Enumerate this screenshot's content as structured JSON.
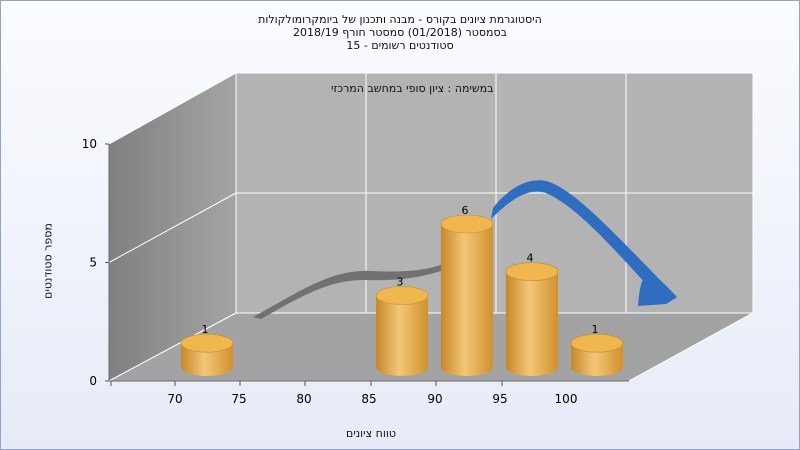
{
  "chart_data": {
    "type": "bar",
    "title_lines": [
      "היסטוגרמת ציונים בקורס - מבנה ותכנון של ביומקרומולקולות",
      "בסמסטר  (01/2018)  סמסטר חורף 2018/19",
      "סטודנטים רשומים - 15"
    ],
    "subtitle": "במשימה : ציון סופי במחשב המרכזי",
    "xlabel": "טווח ציונים",
    "ylabel": "מספר סטודנטים",
    "x_ticks": [
      "70",
      "75",
      "80",
      "85",
      "90",
      "95",
      "100"
    ],
    "y_ticks": [
      "0",
      "5",
      "10"
    ],
    "ylim": [
      0,
      10
    ],
    "bars": [
      {
        "x": 70,
        "value": 1
      },
      {
        "x": 85,
        "value": 3
      },
      {
        "x": 90,
        "value": 6
      },
      {
        "x": 95,
        "value": 4
      },
      {
        "x": 100,
        "value": 1
      }
    ],
    "curve_note": "smooth ribbon across back of plot; gray in left part, blue in right part",
    "colors": {
      "bar_fill": "#e1a335",
      "bar_top": "#f0b64f",
      "curve_gray": "#6e6e6e",
      "curve_blue": "#2f6dc1",
      "back_wall": "#b3b3b3",
      "left_wall": "#9a9a9a",
      "floor": "#a3a3a3"
    },
    "grid": true
  }
}
